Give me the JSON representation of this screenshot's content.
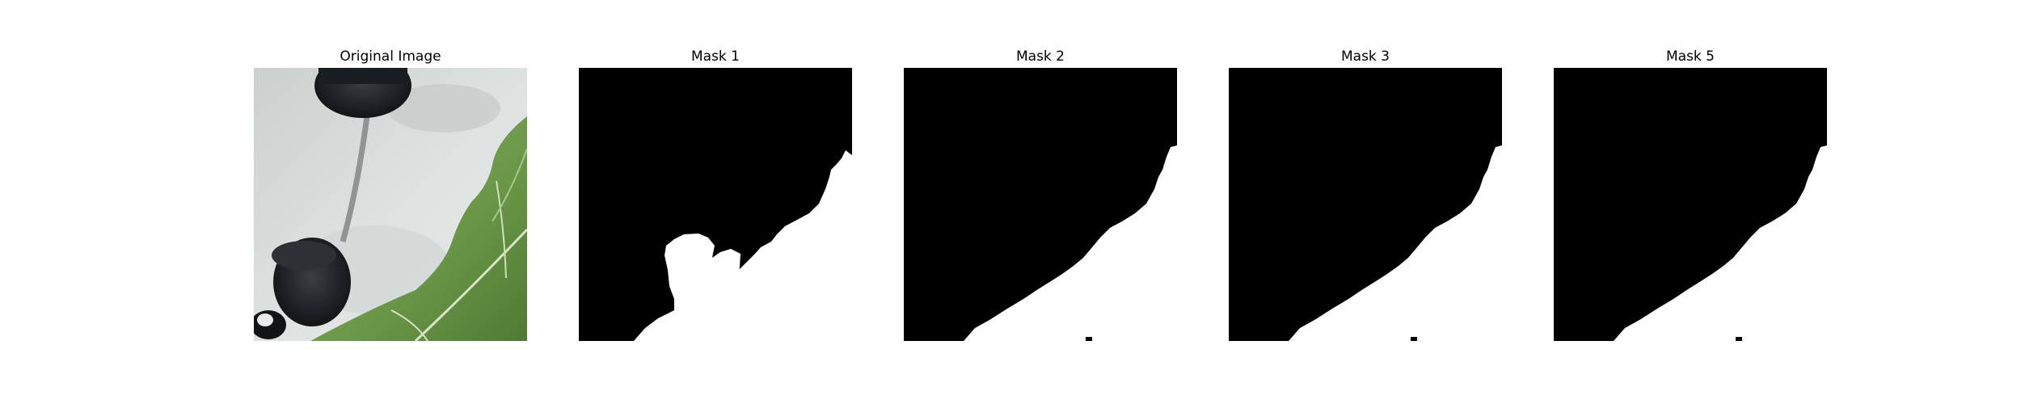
{
  "figure": {
    "panels": [
      {
        "title": "Original Image",
        "kind": "photo"
      },
      {
        "title": "Mask 1",
        "kind": "mask",
        "variant": "with-blob"
      },
      {
        "title": "Mask 2",
        "kind": "mask",
        "variant": "edge"
      },
      {
        "title": "Mask 3",
        "kind": "mask",
        "variant": "edge"
      },
      {
        "title": "Mask 5",
        "kind": "mask",
        "variant": "edge"
      }
    ],
    "colors": {
      "mask_foreground": "#ffffff",
      "mask_background": "#000000",
      "wall": "#d6dcda",
      "leaf": "#6f9a4c",
      "pot": "#1c1f21"
    }
  }
}
